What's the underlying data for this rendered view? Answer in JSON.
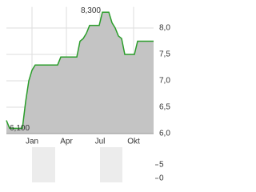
{
  "chart_data": [
    {
      "type": "area",
      "x": [
        0,
        1,
        2,
        3,
        4,
        5,
        6,
        7,
        8,
        9,
        10,
        11,
        12,
        13,
        14,
        15,
        16,
        17,
        18,
        19,
        20,
        21,
        22,
        23,
        24,
        25,
        26,
        27,
        28,
        29,
        30,
        31,
        32,
        33,
        34,
        35,
        36,
        37,
        38,
        39,
        40,
        41,
        42,
        43,
        44,
        45,
        46
      ],
      "series": [
        {
          "color": "#2a9d2a",
          "fill": "#c4c4c4",
          "values": [
            6.25,
            6.1,
            6.1,
            6.1,
            6.1,
            6.1,
            6.6,
            7.0,
            7.2,
            7.3,
            7.3,
            7.3,
            7.3,
            7.3,
            7.3,
            7.3,
            7.3,
            7.45,
            7.45,
            7.45,
            7.45,
            7.45,
            7.45,
            7.75,
            7.8,
            7.9,
            8.05,
            8.05,
            8.05,
            8.05,
            8.3,
            8.3,
            8.3,
            8.1,
            8.0,
            7.85,
            7.8,
            7.5,
            7.5,
            7.5,
            7.5,
            7.75,
            7.75,
            7.75,
            7.75,
            7.75,
            7.75
          ]
        }
      ],
      "xlim": [
        0,
        46
      ],
      "xticks": [
        {
          "value": 8,
          "label": "Jan"
        },
        {
          "value": 18.75,
          "label": "Apr"
        },
        {
          "value": 29.25,
          "label": "Jul"
        },
        {
          "value": 39.75,
          "label": "Okt"
        }
      ],
      "ylim": [
        6.0,
        8.4
      ],
      "yticks": [
        {
          "value": 6.0,
          "label": "6,0"
        },
        {
          "value": 6.5,
          "label": "6,5"
        },
        {
          "value": 7.0,
          "label": "7,0"
        },
        {
          "value": 7.5,
          "label": "7,5"
        },
        {
          "value": 8.0,
          "label": "8,0"
        }
      ],
      "grid": true,
      "annotations": [
        {
          "text": "8,300",
          "x": 30,
          "y": 8.3
        },
        {
          "text": "6,100",
          "x": 1,
          "y": 6.1
        }
      ]
    },
    {
      "type": "volume",
      "ylim": [
        -1.5,
        11.5
      ],
      "yticks": [
        5,
        0
      ]
    }
  ]
}
